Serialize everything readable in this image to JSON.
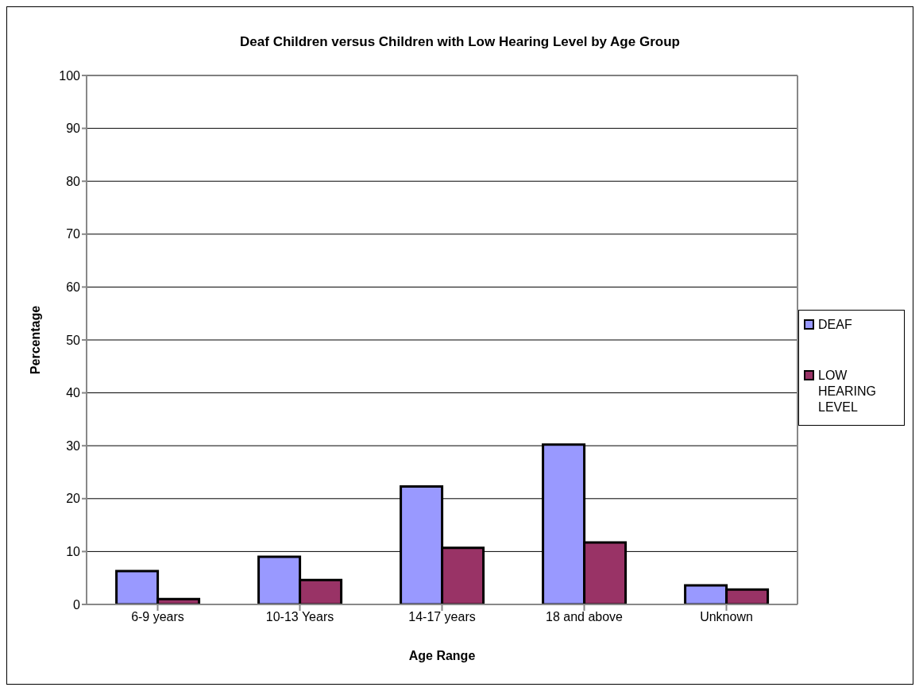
{
  "chart_data": {
    "type": "bar",
    "title": "Deaf Children versus Children with Low Hearing Level by Age Group",
    "xlabel": "Age Range",
    "ylabel": "Percentage",
    "categories": [
      "6-9 years",
      "10-13 Years",
      "14-17 years",
      "18 and above",
      "Unknown"
    ],
    "series": [
      {
        "name": "DEAF",
        "color": "#9999ff",
        "values": [
          6.3,
          9.0,
          22.3,
          30.2,
          3.6
        ]
      },
      {
        "name": "LOW HEARING LEVEL",
        "color": "#993366",
        "values": [
          1.0,
          4.6,
          10.7,
          11.7,
          2.8
        ]
      }
    ],
    "ylim": [
      0,
      100
    ],
    "yticks": [
      0,
      10,
      20,
      30,
      40,
      50,
      60,
      70,
      80,
      90,
      100
    ],
    "grid": "y",
    "legend": "right"
  }
}
